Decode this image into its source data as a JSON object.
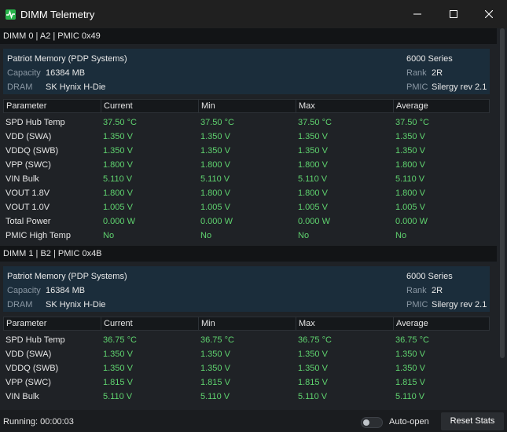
{
  "window": {
    "title": "DIMM Telemetry",
    "accent": "#27b34a"
  },
  "columns": [
    "Parameter",
    "Current",
    "Min",
    "Max",
    "Average"
  ],
  "dimms": [
    {
      "header": "DIMM 0 | A2 | PMIC 0x49",
      "info": {
        "vendor": "Patriot Memory (PDP Systems)",
        "series": "6000 Series",
        "capacity_label": "Capacity",
        "capacity": "16384 MB",
        "rank_label": "Rank",
        "rank": "2R",
        "dram_label": "DRAM",
        "dram": "SK Hynix H-Die",
        "pmic_label": "PMIC",
        "pmic": "Silergy rev 2.1"
      },
      "rows": [
        {
          "param": "SPD Hub Temp",
          "current": "37.50 °C",
          "min": "37.50 °C",
          "max": "37.50 °C",
          "avg": "37.50 °C"
        },
        {
          "param": "VDD (SWA)",
          "current": "1.350 V",
          "min": "1.350 V",
          "max": "1.350 V",
          "avg": "1.350 V"
        },
        {
          "param": "VDDQ (SWB)",
          "current": "1.350 V",
          "min": "1.350 V",
          "max": "1.350 V",
          "avg": "1.350 V"
        },
        {
          "param": "VPP (SWC)",
          "current": "1.800 V",
          "min": "1.800 V",
          "max": "1.800 V",
          "avg": "1.800 V"
        },
        {
          "param": "VIN Bulk",
          "current": "5.110 V",
          "min": "5.110 V",
          "max": "5.110 V",
          "avg": "5.110 V"
        },
        {
          "param": "VOUT 1.8V",
          "current": "1.800 V",
          "min": "1.800 V",
          "max": "1.800 V",
          "avg": "1.800 V"
        },
        {
          "param": "VOUT 1.0V",
          "current": "1.005 V",
          "min": "1.005 V",
          "max": "1.005 V",
          "avg": "1.005 V"
        },
        {
          "param": "Total Power",
          "current": "0.000 W",
          "min": "0.000 W",
          "max": "0.000 W",
          "avg": "0.000 W"
        },
        {
          "param": "PMIC High Temp",
          "current": "No",
          "min": "No",
          "max": "No",
          "avg": "No"
        }
      ]
    },
    {
      "header": "DIMM 1 | B2 | PMIC 0x4B",
      "info": {
        "vendor": "Patriot Memory (PDP Systems)",
        "series": "6000 Series",
        "capacity_label": "Capacity",
        "capacity": "16384 MB",
        "rank_label": "Rank",
        "rank": "2R",
        "dram_label": "DRAM",
        "dram": "SK Hynix H-Die",
        "pmic_label": "PMIC",
        "pmic": "Silergy rev 2.1"
      },
      "rows": [
        {
          "param": "SPD Hub Temp",
          "current": "36.75 °C",
          "min": "36.75 °C",
          "max": "36.75 °C",
          "avg": "36.75 °C"
        },
        {
          "param": "VDD (SWA)",
          "current": "1.350 V",
          "min": "1.350 V",
          "max": "1.350 V",
          "avg": "1.350 V"
        },
        {
          "param": "VDDQ (SWB)",
          "current": "1.350 V",
          "min": "1.350 V",
          "max": "1.350 V",
          "avg": "1.350 V"
        },
        {
          "param": "VPP (SWC)",
          "current": "1.815 V",
          "min": "1.815 V",
          "max": "1.815 V",
          "avg": "1.815 V"
        },
        {
          "param": "VIN Bulk",
          "current": "5.110 V",
          "min": "5.110 V",
          "max": "5.110 V",
          "avg": "5.110 V"
        }
      ]
    }
  ],
  "status": {
    "running": "Running: 00:00:03",
    "auto_open_label": "Auto-open",
    "auto_open_on": false,
    "reset_label": "Reset Stats"
  },
  "colors": {
    "value_green": "#5fd36f",
    "panel_blue": "#1b2d3b"
  }
}
